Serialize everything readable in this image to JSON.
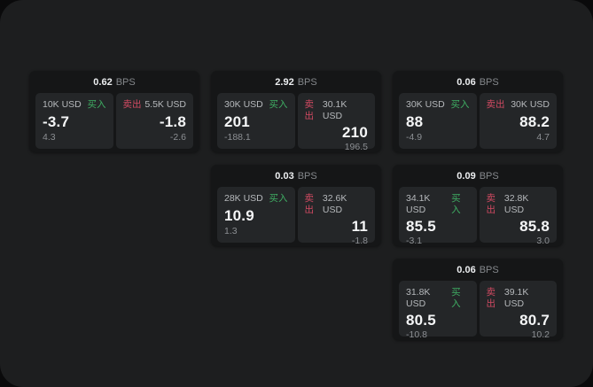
{
  "labels": {
    "bps_unit": "BPS",
    "buy": "买入",
    "sell": "卖出"
  },
  "colors": {
    "screen_bg": "#1d1e1f",
    "card_bg": "#151617",
    "tile_bg": "#242628",
    "buy_green": "#3fae63",
    "sell_red": "#d14a62",
    "primary_text": "#f5f6f7",
    "muted_text": "#8c8f93"
  },
  "cards": [
    {
      "row": 1,
      "col": 1,
      "bps": "0.62",
      "buy": {
        "amount": "10K USD",
        "price": "-3.7",
        "delta": "4.3"
      },
      "sell": {
        "amount": "5.5K USD",
        "price": "-1.8",
        "delta": "-2.6"
      }
    },
    {
      "row": 1,
      "col": 2,
      "bps": "2.92",
      "buy": {
        "amount": "30K USD",
        "price": "201",
        "delta": "-188.1"
      },
      "sell": {
        "amount": "30.1K USD",
        "price": "210",
        "delta": "196.5"
      }
    },
    {
      "row": 1,
      "col": 3,
      "bps": "0.06",
      "buy": {
        "amount": "30K USD",
        "price": "88",
        "delta": "-4.9"
      },
      "sell": {
        "amount": "30K USD",
        "price": "88.2",
        "delta": "4.7"
      }
    },
    {
      "row": 2,
      "col": 2,
      "bps": "0.03",
      "buy": {
        "amount": "28K USD",
        "price": "10.9",
        "delta": "1.3"
      },
      "sell": {
        "amount": "32.6K USD",
        "price": "11",
        "delta": "-1.8"
      }
    },
    {
      "row": 2,
      "col": 3,
      "bps": "0.09",
      "buy": {
        "amount": "34.1K USD",
        "price": "85.5",
        "delta": "-3.1"
      },
      "sell": {
        "amount": "32.8K USD",
        "price": "85.8",
        "delta": "3.0"
      }
    },
    {
      "row": 3,
      "col": 3,
      "bps": "0.06",
      "buy": {
        "amount": "31.8K USD",
        "price": "80.5",
        "delta": "-10.8"
      },
      "sell": {
        "amount": "39.1K USD",
        "price": "80.7",
        "delta": "10.2"
      }
    }
  ]
}
